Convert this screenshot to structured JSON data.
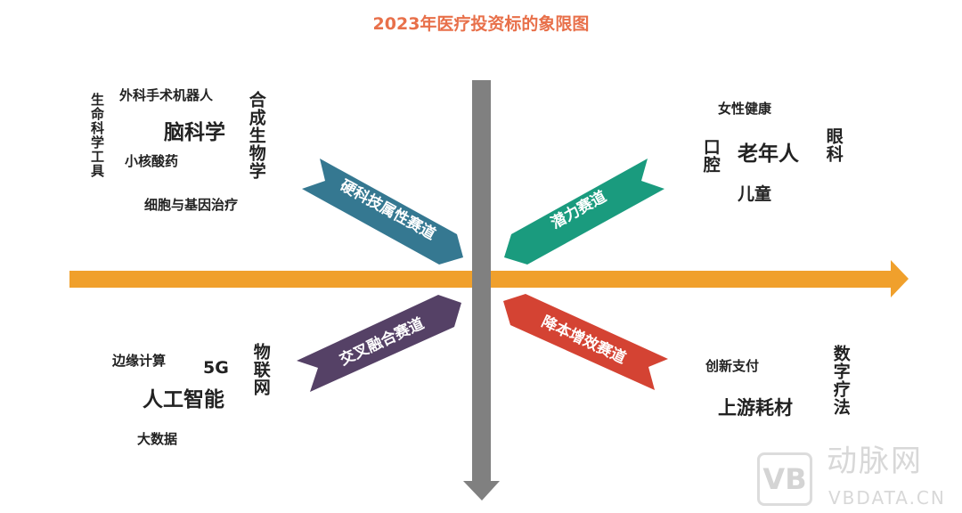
{
  "title": "2023年医疗投资标的象限图",
  "colors": {
    "title": "#e8704a",
    "h_axis": "#f0a02c",
    "v_axis": "#808080",
    "hard_tech": "#357891",
    "potential": "#1a9b7e",
    "cross": "#554166",
    "cost": "#d44333"
  },
  "ribbons": {
    "hard_tech": "硬科技属性赛道",
    "potential": "潜力赛道",
    "cross": "交叉融合赛道",
    "cost": "降本增效赛道"
  },
  "q1": [
    "生命科学工具",
    "外科手术机器人",
    "脑科学",
    "小核酸药",
    "合成生物学",
    "细胞与基因治疗"
  ],
  "q2": [
    "女性健康",
    "口腔",
    "老年人",
    "眼科",
    "儿童"
  ],
  "q3": [
    "边缘计算",
    "5G",
    "物联网",
    "人工智能",
    "大数据"
  ],
  "q4": [
    "创新支付",
    "数字疗法",
    "上游耗材"
  ],
  "watermark": {
    "brand": "动脉网",
    "url": "VBDATA.CN",
    "logo": "VB"
  }
}
